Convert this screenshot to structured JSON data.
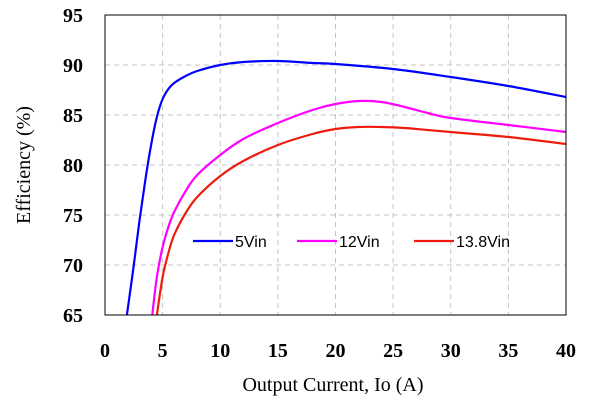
{
  "chart_data": {
    "type": "line",
    "title": "",
    "xlabel": "Output Current, Io (A)",
    "ylabel": "Efficiency (%)",
    "xlim": [
      0,
      40
    ],
    "ylim": [
      65,
      95
    ],
    "xticks": [
      "0",
      "5",
      "10",
      "15",
      "20",
      "25",
      "30",
      "35",
      "40"
    ],
    "yticks": [
      "65",
      "70",
      "75",
      "80",
      "85",
      "90",
      "95"
    ],
    "grid": true,
    "legend_position": "lower-center",
    "series": [
      {
        "name": "5Vin",
        "color": "#0000ff",
        "x": [
          1.9,
          2.5,
          3.0,
          3.5,
          4.0,
          4.5,
          5.0,
          5.5,
          6.0,
          7.0,
          8.0,
          10.0,
          12.0,
          15.0,
          18.0,
          20.0,
          25.0,
          30.0,
          35.0,
          40.0
        ],
        "y": [
          65.0,
          70.0,
          74.5,
          78.5,
          82.0,
          84.8,
          86.6,
          87.6,
          88.2,
          88.9,
          89.4,
          90.0,
          90.3,
          90.4,
          90.2,
          90.1,
          89.6,
          88.8,
          87.9,
          86.8
        ]
      },
      {
        "name": "12Vin",
        "color": "#ff00ff",
        "x": [
          4.1,
          4.5,
          5.0,
          5.5,
          6.0,
          7.0,
          8.0,
          10.0,
          12.0,
          15.0,
          18.0,
          20.0,
          22.0,
          24.0,
          26.0,
          28.0,
          30.0,
          35.0,
          40.0
        ],
        "y": [
          65.0,
          68.8,
          71.8,
          73.8,
          75.3,
          77.4,
          79.0,
          81.0,
          82.6,
          84.2,
          85.5,
          86.1,
          86.4,
          86.3,
          85.8,
          85.2,
          84.7,
          84.0,
          83.3
        ]
      },
      {
        "name": "13.8Vin",
        "color": "#ee1c0f",
        "x": [
          4.5,
          5.0,
          5.5,
          6.0,
          7.0,
          8.0,
          10.0,
          12.0,
          15.0,
          18.0,
          20.0,
          22.0,
          24.0,
          26.0,
          28.0,
          30.0,
          35.0,
          40.0
        ],
        "y": [
          65.0,
          68.8,
          71.2,
          73.0,
          75.2,
          76.8,
          78.9,
          80.4,
          82.0,
          83.1,
          83.6,
          83.8,
          83.8,
          83.7,
          83.5,
          83.3,
          82.8,
          82.1
        ]
      }
    ]
  }
}
